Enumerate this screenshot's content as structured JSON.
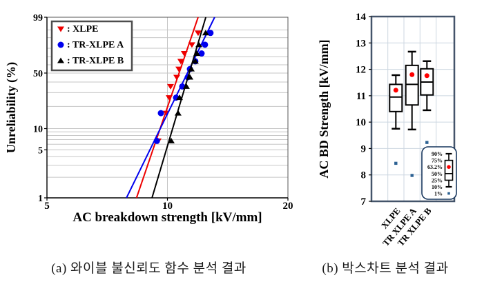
{
  "figure": {
    "captions": {
      "a": "(a) 와이블 불신뢰도 함수 분석 결과",
      "b": "(b) 박스차트 분석 결과"
    }
  },
  "colors": {
    "grid_a": "#c6c6c6",
    "grid_b": "#ccd6e0",
    "axis": "#000000",
    "box_border_b": "#44546a",
    "legend_border_a": "#4d4d4d",
    "legend_border_b": "#17365d",
    "outlier": "#2d6293",
    "mean_dot": "#ff0000"
  },
  "chart_data": [
    {
      "type": "scatter",
      "name": "weibull-plot",
      "xlabel": "AC breakdown strength [kV/mm]",
      "ylabel": "Unreliability (%)",
      "x_scale": "log",
      "y_scale": "weibull-probability",
      "xlim": [
        5,
        20
      ],
      "ylim_percent": [
        1,
        99
      ],
      "x_ticks": [
        5,
        10,
        20
      ],
      "y_ticks": [
        1,
        5,
        10,
        50,
        99
      ],
      "y_gridlines_percent": [
        2,
        3,
        4,
        5,
        6,
        7,
        8,
        9,
        10,
        20,
        30,
        40,
        50,
        60,
        70,
        80,
        90,
        95
      ],
      "x_gridlines": [
        10
      ],
      "unreliability_ranks_percent": [
        6.7,
        16.3,
        26.0,
        35.6,
        45.2,
        54.8,
        64.4,
        74.0,
        83.7,
        93.3
      ],
      "series": [
        {
          "name": "XLPE",
          "marker": "triangle-down",
          "color": "#ee0000",
          "strength_kv_mm": [
            9.48,
            9.94,
            10.1,
            10.18,
            10.55,
            10.68,
            10.8,
            11.02,
            11.51,
            11.93
          ],
          "fit_line": {
            "x_at_1pct": 8.37,
            "x_at_99pct": 11.93
          }
        },
        {
          "name": "TR-XLPE A",
          "marker": "circle",
          "color": "#0000ee",
          "strength_kv_mm": [
            9.41,
            9.63,
            10.51,
            10.89,
            11.24,
            11.38,
            11.74,
            12.17,
            12.41,
            12.81
          ],
          "fit_line": {
            "x_at_1pct": 7.9,
            "x_at_99pct": 13.12
          }
        },
        {
          "name": "TR-XLPE B",
          "marker": "triangle-up",
          "color": "#000000",
          "strength_kv_mm": [
            10.22,
            10.63,
            10.72,
            11.15,
            11.38,
            11.47,
            11.74,
            11.84,
            11.98,
            12.46
          ],
          "fit_line": {
            "x_at_1pct": 9.15,
            "x_at_99pct": 12.47
          }
        }
      ]
    },
    {
      "type": "boxplot",
      "name": "box-chart",
      "ylabel": "AC BD Strength [kV/mm]",
      "ylim": [
        7,
        14
      ],
      "y_ticks": [
        7,
        8,
        9,
        10,
        11,
        12,
        13,
        14
      ],
      "categories": [
        "XLPE",
        "TR XLPE A",
        "TR XLPE B"
      ],
      "boxes": [
        {
          "p1": 8.44,
          "p10": 9.75,
          "p25": 10.4,
          "p50": 10.95,
          "p63_2": 11.21,
          "p75": 11.43,
          "p90": 11.78
        },
        {
          "p1": 7.98,
          "p10": 9.72,
          "p25": 10.65,
          "p50": 11.43,
          "p63_2": 11.8,
          "p75": 12.15,
          "p90": 12.67
        },
        {
          "p1": 9.23,
          "p10": 10.45,
          "p25": 11.03,
          "p50": 11.52,
          "p63_2": 11.76,
          "p75": 12.02,
          "p90": 12.31
        }
      ],
      "legend_percentiles": [
        "90%",
        "75%",
        "63.2%",
        "50%",
        "25%",
        "10%",
        "1%"
      ]
    }
  ]
}
